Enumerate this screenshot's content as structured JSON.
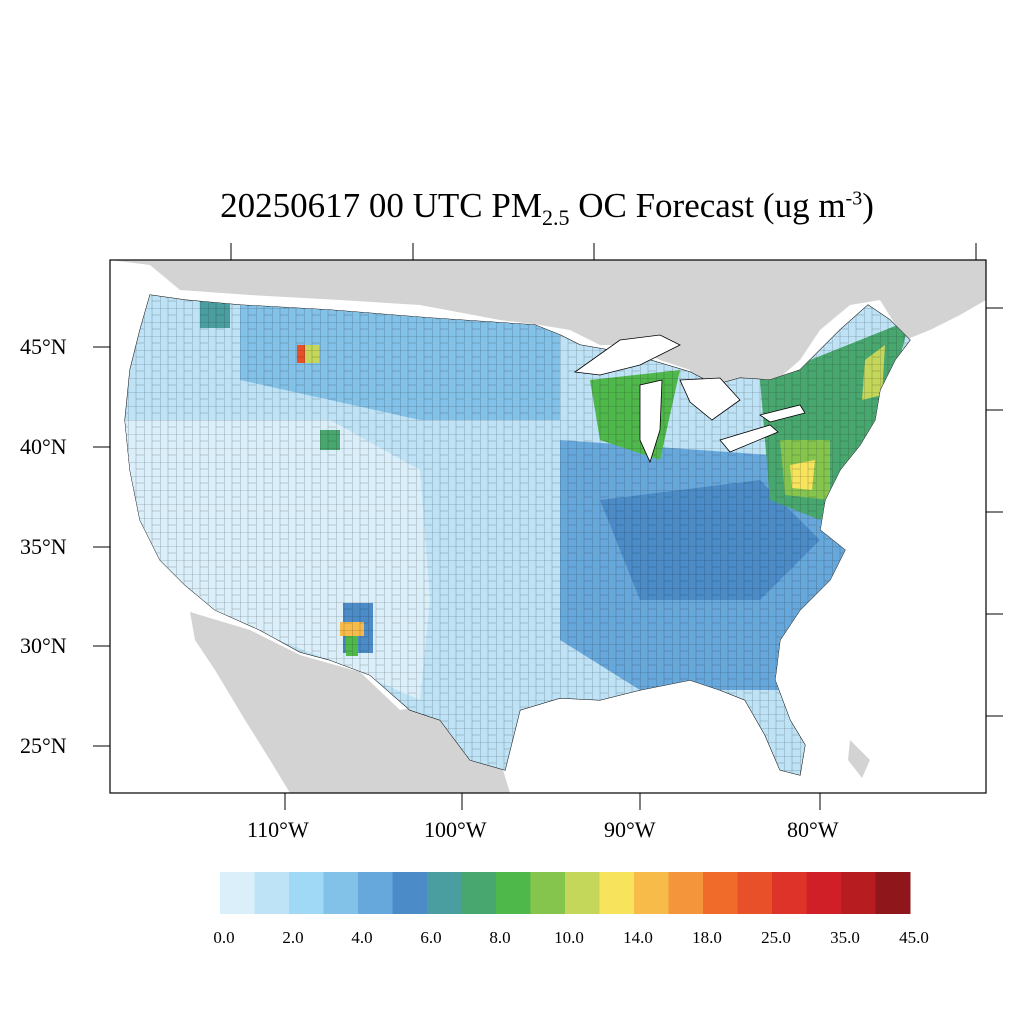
{
  "title": {
    "prefix": "20250617 00 UTC PM",
    "sub": "2.5",
    "mid": " OC Forecast (ug m",
    "sup": "-3",
    "suffix": ")"
  },
  "axes": {
    "lat_labels": [
      "45°N",
      "40°N",
      "35°N",
      "30°N",
      "25°N"
    ],
    "lon_labels": [
      "110°W",
      "100°W",
      "90°W",
      "80°W"
    ]
  },
  "colorbar": {
    "colors": [
      "#dbeffa",
      "#bee3f6",
      "#9fd9f6",
      "#82c1e8",
      "#67a8dc",
      "#4b8bc8",
      "#4b9ea0",
      "#48a76e",
      "#4fb84a",
      "#85c54e",
      "#c5d75a",
      "#f7e45c",
      "#f7bb4a",
      "#f5953b",
      "#f06a2a",
      "#e8502a",
      "#dd3328",
      "#d11f27",
      "#b71c20",
      "#8f161b"
    ],
    "labels": [
      "0.0",
      "2.0",
      "4.0",
      "6.0",
      "8.0",
      "10.0",
      "14.0",
      "18.0",
      "25.0",
      "35.0",
      "45.0"
    ]
  },
  "colors": {
    "land_outside": "#d3d3d3",
    "water": "#ffffff",
    "border": "#000000"
  }
}
